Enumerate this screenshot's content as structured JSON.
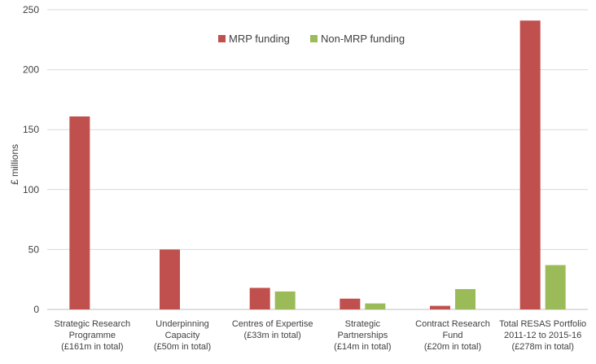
{
  "chart_data": {
    "type": "bar",
    "title": "",
    "xlabel": "",
    "ylabel": "£ millions",
    "ylim": [
      0,
      250
    ],
    "yticks": [
      0,
      50,
      100,
      150,
      200,
      250
    ],
    "grid": true,
    "legend_position": "top-center",
    "categories": [
      [
        "Strategic Research",
        "Programme",
        "(£161m in total)"
      ],
      [
        "Underpinning",
        "Capacity",
        "(£50m in total)"
      ],
      [
        "Centres of Expertise",
        "(£33m in total)"
      ],
      [
        "Strategic",
        "Partnerships",
        "(£14m in total)"
      ],
      [
        "Contract Research",
        "Fund",
        "(£20m in total)"
      ],
      [
        "Total RESAS Portfolio",
        "2011-12 to 2015-16",
        "(£278m in total)"
      ]
    ],
    "series": [
      {
        "name": "MRP funding",
        "color": "#c0504d",
        "values": [
          161,
          50,
          18,
          9,
          3,
          241
        ]
      },
      {
        "name": "Non-MRP funding",
        "color": "#9bbb59",
        "values": [
          0,
          0,
          15,
          5,
          17,
          37
        ]
      }
    ]
  }
}
